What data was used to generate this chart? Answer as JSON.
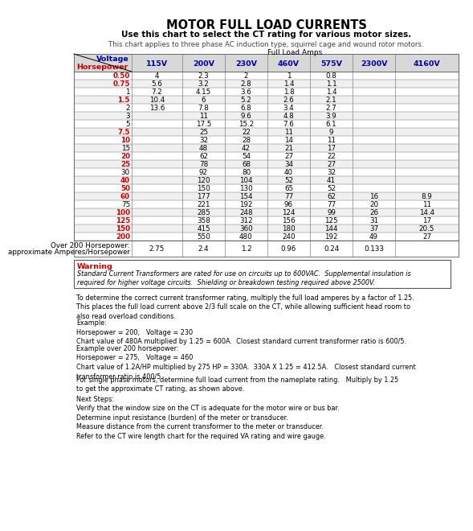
{
  "title": "MOTOR FULL LOAD CURRENTS",
  "subtitle": "Use this chart to select the CT rating for various motor sizes.",
  "subtitle2": "This chart applies to three phase AC induction type, squirrel cage and wound rotor motors.",
  "table_header": "Full Load Amps",
  "col_header_voltage": "Voltage",
  "col_header_hp": "Horsepower",
  "voltages": [
    "115V",
    "200V",
    "230V",
    "460V",
    "575V",
    "2300V",
    "4160V"
  ],
  "hp_values": [
    "0.50",
    "0.75",
    "1",
    "1.5",
    "2",
    "3",
    "5",
    "7.5",
    "10",
    "15",
    "20",
    "25",
    "30",
    "40",
    "50",
    "60",
    "75",
    "100",
    "125",
    "150",
    "200"
  ],
  "hp_bold": [
    true,
    true,
    false,
    true,
    false,
    false,
    false,
    true,
    true,
    false,
    true,
    true,
    false,
    true,
    true,
    true,
    false,
    true,
    true,
    true,
    true
  ],
  "data": [
    [
      "4",
      "2.3",
      "2",
      "1",
      "0.8",
      "",
      ""
    ],
    [
      "5.6",
      "3.2",
      "2.8",
      "1.4",
      "1.1",
      "",
      ""
    ],
    [
      "7.2",
      "4.15",
      "3.6",
      "1.8",
      "1.4",
      "",
      ""
    ],
    [
      "10.4",
      "6",
      "5.2",
      "2.6",
      "2.1",
      "",
      ""
    ],
    [
      "13.6",
      "7.8",
      "6.8",
      "3.4",
      "2.7",
      "",
      ""
    ],
    [
      "",
      "11",
      "9.6",
      "4.8",
      "3.9",
      "",
      ""
    ],
    [
      "",
      "17.5",
      "15.2",
      "7.6",
      "6.1",
      "",
      ""
    ],
    [
      "",
      "25",
      "22",
      "11",
      "9",
      "",
      ""
    ],
    [
      "",
      "32",
      "28",
      "14",
      "11",
      "",
      ""
    ],
    [
      "",
      "48",
      "42",
      "21",
      "17",
      "",
      ""
    ],
    [
      "",
      "62",
      "54",
      "27",
      "22",
      "",
      ""
    ],
    [
      "",
      "78",
      "68",
      "34",
      "27",
      "",
      ""
    ],
    [
      "",
      "92",
      "80",
      "40",
      "32",
      "",
      ""
    ],
    [
      "",
      "120",
      "104",
      "52",
      "41",
      "",
      ""
    ],
    [
      "",
      "150",
      "130",
      "65",
      "52",
      "",
      ""
    ],
    [
      "",
      "177",
      "154",
      "77",
      "62",
      "16",
      "8.9"
    ],
    [
      "",
      "221",
      "192",
      "96",
      "77",
      "20",
      "11"
    ],
    [
      "",
      "285",
      "248",
      "124",
      "99",
      "26",
      "14.4"
    ],
    [
      "",
      "358",
      "312",
      "156",
      "125",
      "31",
      "17"
    ],
    [
      "",
      "415",
      "360",
      "180",
      "144",
      "37",
      "20.5"
    ],
    [
      "",
      "550",
      "480",
      "240",
      "192",
      "49",
      "27"
    ]
  ],
  "over200_label1": "Over 200 Horsepower:",
  "over200_label2": "approximate Amperes/Horsepower",
  "over200_values": [
    "",
    "2.75",
    "2.4",
    "1.2",
    "0.96",
    "0.24",
    "0.133"
  ],
  "warning_title": "Warning",
  "warning_text": "Standard Current Transformers are rated for use on circuits up to 600VAC.  Supplemental insulation is\nrequired for higher voltage circuits.  Shielding or breakdown testing required above 2500V.",
  "body_paragraphs": [
    "To determine the correct current transformer rating, multiply the full load amperes by a factor of 1.25.\nThis places the full load current above 2/3 full scale on the CT, while allowing sufficient head room to\nalso read overload conditions.",
    "Example:\nHorsepower = 200,   Voltage = 230\nChart value of 480A multiplied by 1.25 = 600A.  Closest standard current transformer ratio is 600/5.",
    "Example over 200 horsepower:\nHorsepower = 275,   Voltage = 460\nChart value of 1.2A/HP multiplied by 275 HP = 330A.  330A X 1.25 = 412.5A.   Closest standard current\ntransformer ratio is 400/5.",
    "For single phase motors, determine full load current from the nameplate rating.   Multiply by 1.25\nto get the approximate CT rating, as shown above.",
    "Next Steps:\nVerify that the window size on the CT is adequate for the motor wire or bus bar.\nDetermine input resistance (burden) of the meter or transducer.\nMeasure distance from the current transformer to the meter or transducer.\nRefer to the CT wire length chart for the required VA rating and wire gauge."
  ],
  "color_red": "#CC0000",
  "color_blue": "#0000AA",
  "color_black": "#000000",
  "color_white": "#ffffff",
  "color_border": "#666666",
  "color_header_bg": "#d8d8d8",
  "color_warn_bg": "#ffffff"
}
